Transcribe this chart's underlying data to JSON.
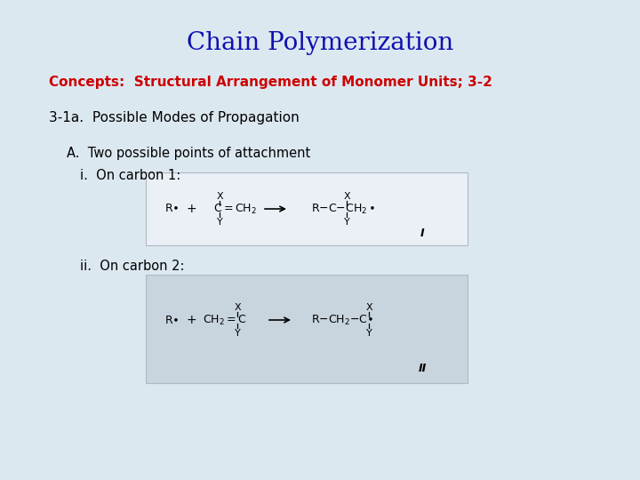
{
  "title": "Chain Polymerization",
  "title_color": "#1010b0",
  "title_fontsize": 20,
  "subtitle": "Concepts:  Structural Arrangement of Monomer Units; 3-2",
  "subtitle_color": "#cc0000",
  "subtitle_fontsize": 11,
  "line1": "3-1a.  Possible Modes of Propagation",
  "line1_fontsize": 11,
  "line1_color": "#000000",
  "line2": "A.  Two possible points of attachment",
  "line2_fontsize": 10.5,
  "line2_color": "#000000",
  "line3": "i.  On carbon 1:",
  "line3_fontsize": 10.5,
  "line3_color": "#000000",
  "line4": "ii.  On carbon 2:",
  "line4_fontsize": 10.5,
  "line4_color": "#000000",
  "bg_color": "#dce8f0",
  "box_bg": "#eaf0f6",
  "box2_bg": "#c8d4de"
}
